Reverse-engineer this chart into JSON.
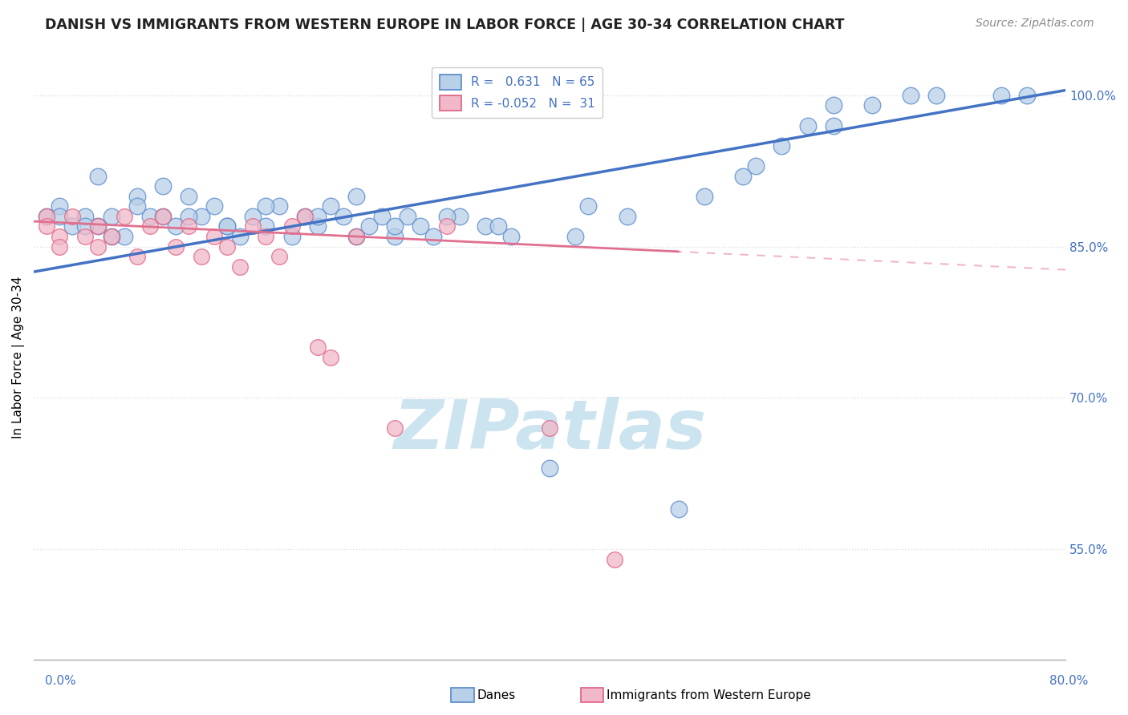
{
  "title": "DANISH VS IMMIGRANTS FROM WESTERN EUROPE IN LABOR FORCE | AGE 30-34 CORRELATION CHART",
  "source": "Source: ZipAtlas.com",
  "ylabel": "In Labor Force | Age 30-34",
  "yticks": [
    55.0,
    70.0,
    85.0,
    100.0
  ],
  "xlim": [
    0.0,
    80.0
  ],
  "ylim": [
    44.0,
    104.0
  ],
  "danes_color": "#b8d0e8",
  "danes_edge_color": "#5588cc",
  "pink_color": "#f0b8c8",
  "pink_edge_color": "#e06080",
  "blue_line_color": "#4472c4",
  "pink_line_color": "#e07090",
  "danes_R": 0.631,
  "danes_N": 65,
  "imm_R": -0.052,
  "imm_N": 31,
  "danes_scatter_x": [
    1,
    2,
    3,
    4,
    5,
    5,
    6,
    7,
    8,
    9,
    10,
    10,
    11,
    12,
    13,
    14,
    15,
    16,
    17,
    18,
    19,
    20,
    21,
    22,
    23,
    24,
    25,
    26,
    27,
    28,
    29,
    30,
    31,
    33,
    35,
    37,
    40,
    43,
    50,
    55,
    58,
    60,
    62,
    65,
    70,
    75,
    77,
    2,
    4,
    6,
    8,
    12,
    15,
    18,
    22,
    25,
    28,
    32,
    36,
    42,
    46,
    52,
    56,
    62,
    68
  ],
  "danes_scatter_y": [
    88,
    89,
    87,
    88,
    87,
    92,
    88,
    86,
    90,
    88,
    91,
    88,
    87,
    90,
    88,
    89,
    87,
    86,
    88,
    87,
    89,
    86,
    88,
    87,
    89,
    88,
    90,
    87,
    88,
    86,
    88,
    87,
    86,
    88,
    87,
    86,
    63,
    89,
    59,
    92,
    95,
    97,
    99,
    99,
    100,
    100,
    100,
    88,
    87,
    86,
    89,
    88,
    87,
    89,
    88,
    86,
    87,
    88,
    87,
    86,
    88,
    90,
    93,
    97,
    100
  ],
  "imm_scatter_x": [
    1,
    1,
    2,
    2,
    3,
    4,
    5,
    5,
    6,
    7,
    8,
    9,
    10,
    11,
    12,
    13,
    14,
    15,
    16,
    17,
    18,
    19,
    20,
    21,
    22,
    23,
    25,
    28,
    32,
    40,
    45
  ],
  "imm_scatter_y": [
    88,
    87,
    86,
    85,
    88,
    86,
    87,
    85,
    86,
    88,
    84,
    87,
    88,
    85,
    87,
    84,
    86,
    85,
    83,
    87,
    86,
    84,
    87,
    88,
    75,
    74,
    86,
    67,
    87,
    67,
    54
  ],
  "blue_line_x0": 0,
  "blue_line_y0": 82.5,
  "blue_line_x1": 80,
  "blue_line_y1": 100.5,
  "pink_line_x0": 0,
  "pink_line_y0": 87.5,
  "pink_line_x1": 50,
  "pink_line_y1": 84.5,
  "pink_dash_x0": 47,
  "pink_dash_x1": 80,
  "watermark": "ZIPatlas",
  "watermark_color": "#cce4f0",
  "background_color": "#ffffff",
  "grid_color": "#dddddd"
}
